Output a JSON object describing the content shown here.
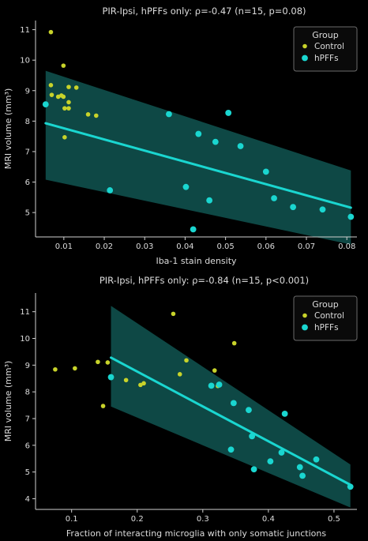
{
  "chart_data": [
    {
      "type": "scatter",
      "title": "PIR-Ipsi, hPFFs only: ρ=-0.47 (n=15, p=0.08)",
      "xlabel": "Iba-1 stain density",
      "ylabel": "MRI volume (mm³)",
      "xlim": [
        0.003,
        0.0825
      ],
      "ylim": [
        4.2,
        11.3
      ],
      "xticks": [
        0.01,
        0.02,
        0.03,
        0.04,
        0.05,
        0.06,
        0.07,
        0.08
      ],
      "xtick_labels": [
        "0.01",
        "0.02",
        "0.03",
        "0.04",
        "0.05",
        "0.06",
        "0.07",
        "0.08"
      ],
      "yticks": [
        5,
        6,
        7,
        8,
        9,
        10,
        11
      ],
      "ytick_labels": [
        "5",
        "6",
        "7",
        "8",
        "9",
        "10",
        "11"
      ],
      "legend": {
        "title": "Group",
        "position": "top-right",
        "entries": [
          "Control",
          "hPFFs"
        ]
      },
      "colors": {
        "Control": "#c8d32a",
        "hPFFs": "#1ad6d0",
        "band": "#10504c"
      },
      "regression": {
        "x": [
          0.0055,
          0.081
        ],
        "y": [
          7.93,
          5.16
        ]
      },
      "confidence_band": {
        "x": [
          0.0055,
          0.081
        ],
        "upper": [
          9.65,
          6.38
        ],
        "lower": [
          6.08,
          3.95
        ]
      },
      "series": [
        {
          "name": "Control",
          "x": [
            0.0068,
            0.0099,
            0.0068,
            0.0112,
            0.0131,
            0.007,
            0.0086,
            0.0099,
            0.0094,
            0.0112,
            0.0102,
            0.0112,
            0.016,
            0.018,
            0.0102
          ],
          "y": [
            10.92,
            9.82,
            9.18,
            9.12,
            9.1,
            8.86,
            8.8,
            8.8,
            8.84,
            8.62,
            8.42,
            8.42,
            8.22,
            8.18,
            7.47
          ]
        },
        {
          "name": "hPFFs",
          "x": [
            0.0055,
            0.036,
            0.0507,
            0.0433,
            0.0475,
            0.0537,
            0.06,
            0.0214,
            0.0402,
            0.062,
            0.046,
            0.0667,
            0.074,
            0.081,
            0.042
          ],
          "y": [
            8.55,
            8.23,
            8.27,
            7.58,
            7.32,
            7.18,
            6.34,
            5.73,
            5.84,
            5.47,
            5.4,
            5.18,
            5.1,
            4.86,
            4.45
          ]
        }
      ]
    },
    {
      "type": "scatter",
      "title": "PIR-Ipsi, hPFFs only: ρ=-0.84 (n=15, p<0.001)",
      "xlabel": "Fraction of interacting microglia with only somatic junctions",
      "ylabel": "MRI volume (mm³)",
      "xlim": [
        0.045,
        0.535
      ],
      "ylim": [
        3.6,
        11.7
      ],
      "xticks": [
        0.1,
        0.2,
        0.3,
        0.4,
        0.5
      ],
      "xtick_labels": [
        "0.1",
        "0.2",
        "0.3",
        "0.4",
        "0.5"
      ],
      "yticks": [
        4,
        5,
        6,
        7,
        8,
        9,
        10,
        11
      ],
      "ytick_labels": [
        "4",
        "5",
        "6",
        "7",
        "8",
        "9",
        "10",
        "11"
      ],
      "legend": {
        "title": "Group",
        "position": "top-right",
        "entries": [
          "Control",
          "hPFFs"
        ]
      },
      "colors": {
        "Control": "#c8d32a",
        "hPFFs": "#1ad6d0",
        "band": "#10504c"
      },
      "regression": {
        "x": [
          0.16,
          0.525
        ],
        "y": [
          9.28,
          4.52
        ]
      },
      "confidence_band": {
        "x": [
          0.16,
          0.525
        ],
        "upper": [
          11.22,
          5.28
        ],
        "lower": [
          7.45,
          3.67
        ]
      },
      "series": [
        {
          "name": "Control",
          "x": [
            0.255,
            0.348,
            0.075,
            0.105,
            0.14,
            0.155,
            0.183,
            0.205,
            0.265,
            0.318,
            0.323,
            0.148,
            0.275,
            0.16,
            0.21
          ],
          "y": [
            10.92,
            9.82,
            8.84,
            8.88,
            9.12,
            9.1,
            8.44,
            8.26,
            8.66,
            8.8,
            8.22,
            7.47,
            9.18,
            8.55,
            8.32
          ]
        },
        {
          "name": "hPFFs",
          "x": [
            0.16,
            0.313,
            0.325,
            0.347,
            0.37,
            0.425,
            0.375,
            0.343,
            0.42,
            0.473,
            0.403,
            0.448,
            0.378,
            0.452,
            0.525
          ],
          "y": [
            8.55,
            8.23,
            8.27,
            7.58,
            7.32,
            7.18,
            6.34,
            5.84,
            5.73,
            5.47,
            5.4,
            5.18,
            5.1,
            4.86,
            4.45
          ]
        }
      ]
    }
  ]
}
